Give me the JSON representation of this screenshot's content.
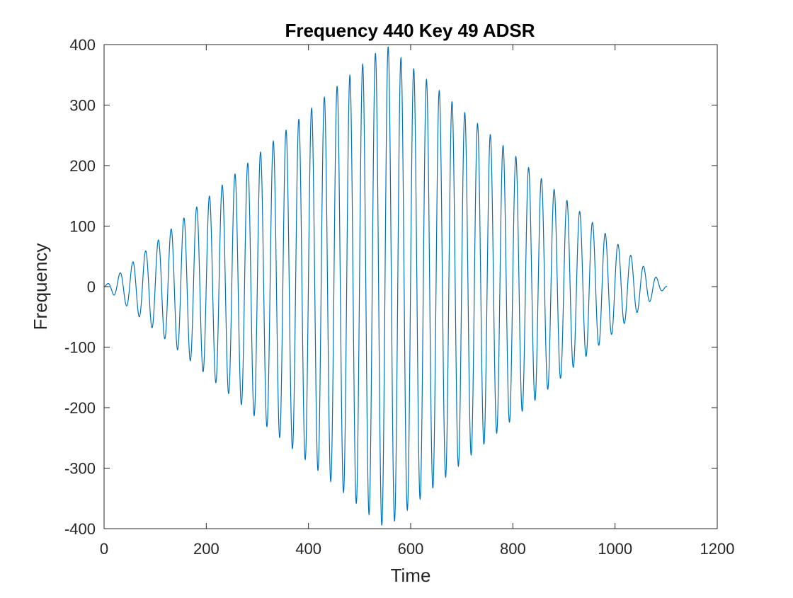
{
  "figure": {
    "background": "#ffffff"
  },
  "chart_data": {
    "type": "line",
    "title": "Frequency 440 Key 49 ADSR",
    "xlabel": "Time",
    "ylabel": "Frequency",
    "xlim": [
      0,
      1200
    ],
    "ylim": [
      -400,
      400
    ],
    "xticks": [
      0,
      200,
      400,
      600,
      800,
      1000,
      1200
    ],
    "xtick_labels": [
      "0",
      "200",
      "400",
      "600",
      "800",
      "1000",
      "1200"
    ],
    "yticks": [
      400,
      300,
      200,
      100,
      0,
      -100,
      -200,
      -300,
      -400
    ],
    "ytick_labels": [
      "400",
      "300",
      "200",
      "100",
      "0",
      "-100",
      "-200",
      "-300",
      "-400"
    ],
    "grid": false,
    "legend": "none",
    "series": [
      {
        "color": "#0072BD",
        "signal": "sine wave with triangular (attack/release) amplitude envelope",
        "x_range": [
          0,
          1102
        ],
        "cycles": 44.1,
        "peak_time": 551,
        "peak_amplitude": 400
      }
    ]
  }
}
